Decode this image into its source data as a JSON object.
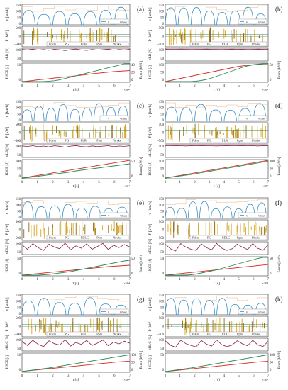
{
  "figure": {
    "panel_labels": [
      "(a)",
      "(b)",
      "(c)",
      "(d)",
      "(e)",
      "(f)",
      "(g)",
      "(h)"
    ],
    "x_axis_label": "t [s]",
    "x_exponent": "×10⁴",
    "x_tick_labels": [
      "0",
      "1",
      "2",
      "3",
      "4",
      "5",
      "6",
      "7"
    ]
  },
  "chart_data": [
    {
      "panel": "(a)",
      "type": "line",
      "ratio_label": "σLB [%]",
      "ratio_ticks": [
        "100",
        "50"
      ],
      "ratio_values": [
        96,
        92,
        98,
        90,
        95,
        88,
        97,
        93,
        85,
        94,
        99,
        91,
        87,
        96,
        90,
        94,
        98,
        89,
        95,
        92,
        97
      ],
      "soh_ylabel": "HSCE [J]",
      "soh_ticks": [
        "0",
        "50"
      ],
      "soh_values": [
        0,
        3,
        6,
        10,
        13,
        16,
        20,
        23,
        26,
        29,
        33,
        36,
        40,
        44,
        47,
        50,
        53,
        56,
        58,
        60,
        62
      ],
      "energy_ylabel": "Ecum [kWh]",
      "energy_ticks": [
        "0",
        "20",
        "40"
      ],
      "energy_values": [
        0,
        0,
        0,
        0,
        0,
        1,
        2,
        4,
        7,
        10,
        13,
        16,
        19,
        22,
        25,
        28,
        31,
        34,
        37,
        40,
        43
      ],
      "power_legend": [
        "Pdem",
        "PG",
        "PLB",
        "Ppm",
        "Pbrake"
      ],
      "speed_legend": [
        "v",
        "vmax"
      ]
    },
    {
      "panel": "(b)",
      "type": "line",
      "ratio_label": "σLB [%]",
      "ratio_ticks": [
        "100",
        "50"
      ],
      "ratio_values": [
        98,
        97,
        96,
        98,
        97,
        95,
        96,
        97,
        98,
        97,
        96,
        95,
        97,
        98,
        96,
        97,
        95,
        96,
        98,
        97,
        96
      ],
      "soh_ylabel": "HSCE [J]",
      "soh_ticks": [
        "0",
        "50",
        "100"
      ],
      "soh_values": [
        0,
        6,
        12,
        18,
        24,
        30,
        36,
        42,
        48,
        54,
        60,
        66,
        72,
        78,
        84,
        88,
        92,
        95,
        97,
        99,
        100
      ],
      "energy_ylabel": "Ecum [kWh]",
      "energy_ticks": [
        "0",
        "50"
      ],
      "energy_values": [
        0,
        0,
        0,
        0,
        0,
        0,
        1,
        3,
        6,
        10,
        15,
        20,
        25,
        30,
        35,
        40,
        44,
        47,
        49,
        50,
        51
      ],
      "power_legend": [
        "Pdem",
        "PG",
        "PLB",
        "Ppm",
        "Pbrake"
      ],
      "speed_legend": [
        "v",
        "vmax"
      ]
    },
    {
      "panel": "(c)",
      "type": "line",
      "ratio_label": "σLB [%]",
      "ratio_ticks": [
        "100",
        "50"
      ],
      "ratio_values": [
        95,
        90,
        97,
        88,
        94,
        86,
        96,
        92,
        84,
        93,
        98,
        90,
        86,
        95,
        89,
        93,
        97,
        88,
        94,
        91,
        96
      ],
      "soh_ylabel": "HSCE [J]",
      "soh_ticks": [
        "0",
        "50",
        "100"
      ],
      "soh_values": [
        0,
        5,
        10,
        15,
        20,
        25,
        30,
        35,
        40,
        45,
        50,
        55,
        60,
        65,
        70,
        75,
        80,
        85,
        90,
        95,
        100
      ],
      "energy_ylabel": "Ecum [kWh]",
      "energy_ticks": [
        "0",
        "50"
      ],
      "energy_values": [
        0,
        1,
        3,
        5,
        7,
        9,
        11,
        13,
        15,
        17,
        20,
        22,
        24,
        26,
        28,
        30,
        32,
        34,
        36,
        38,
        40
      ],
      "power_legend": [
        "Pdem",
        "PG",
        "PLB",
        "Ppm",
        "Pbrake"
      ],
      "speed_legend": [
        "v",
        "vmax"
      ]
    },
    {
      "panel": "(d)",
      "type": "line",
      "ratio_label": "σLB [%]",
      "ratio_ticks": [
        "100",
        "50"
      ],
      "ratio_values": [
        97,
        96,
        98,
        97,
        95,
        97,
        96,
        98,
        97,
        96,
        95,
        97,
        98,
        96,
        97,
        98,
        96,
        97,
        95,
        97,
        96
      ],
      "soh_ylabel": "HSCE [J]",
      "soh_ticks": [
        "0",
        "50",
        "100"
      ],
      "soh_values": [
        0,
        5,
        10,
        15,
        20,
        25,
        30,
        35,
        40,
        45,
        50,
        55,
        60,
        65,
        70,
        75,
        80,
        85,
        90,
        95,
        100
      ],
      "energy_ylabel": "Ecum [kWh]",
      "energy_ticks": [
        "0",
        "50",
        "100"
      ],
      "energy_values": [
        0,
        4,
        8,
        12,
        16,
        20,
        25,
        30,
        35,
        40,
        45,
        50,
        55,
        60,
        65,
        70,
        75,
        80,
        85,
        90,
        95
      ],
      "power_legend": [
        "Pdem",
        "PG",
        "PLB",
        "Ppm",
        "Pbrake"
      ],
      "speed_legend": [
        "v",
        "vmax"
      ]
    },
    {
      "panel": "(e)",
      "type": "line",
      "ratio_label": "σDLC [%]",
      "ratio_ticks": [
        "100",
        "50"
      ],
      "ratio_values": [
        80,
        40,
        90,
        55,
        30,
        85,
        60,
        45,
        95,
        35,
        70,
        50,
        88,
        40,
        65,
        92,
        38,
        75,
        55,
        82,
        60
      ],
      "soh_ylabel": "HSCE [J]",
      "soh_ticks": [
        "0",
        "50"
      ],
      "soh_values": [
        0,
        3,
        6,
        9,
        12,
        15,
        18,
        21,
        24,
        27,
        30,
        33,
        36,
        39,
        42,
        45,
        48,
        50,
        52,
        54,
        56
      ],
      "energy_ylabel": "Ecum [kWh]",
      "energy_ticks": [
        "0",
        "50"
      ],
      "energy_values": [
        0,
        0,
        0,
        0,
        1,
        2,
        4,
        6,
        8,
        10,
        13,
        16,
        19,
        22,
        25,
        28,
        31,
        34,
        37,
        40,
        42
      ],
      "power_legend": [
        "Pdem",
        "PG",
        "PDLC",
        "Ppm",
        "Pbrake"
      ],
      "speed_legend": [
        "v",
        "vmax"
      ]
    },
    {
      "panel": "(f)",
      "type": "line",
      "ratio_label": "σDLC [%]",
      "ratio_ticks": [
        "100",
        "50"
      ],
      "ratio_values": [
        85,
        45,
        25,
        90,
        60,
        40,
        30,
        88,
        55,
        35,
        92,
        50,
        30,
        45,
        86,
        58,
        38,
        90,
        48,
        32,
        80
      ],
      "soh_ylabel": "HSCE [J]",
      "soh_ticks": [
        "0",
        "50"
      ],
      "soh_values": [
        0,
        3,
        6,
        9,
        12,
        15,
        18,
        21,
        24,
        27,
        30,
        33,
        36,
        39,
        42,
        45,
        48,
        51,
        54,
        57,
        60
      ],
      "energy_ylabel": "Ecum [kWh]",
      "energy_ticks": [
        "0",
        "50"
      ],
      "energy_values": [
        0,
        0,
        0,
        0,
        0,
        1,
        3,
        6,
        9,
        12,
        15,
        19,
        23,
        27,
        31,
        35,
        39,
        43,
        47,
        50,
        53
      ],
      "power_legend": [
        "Pdem",
        "PG",
        "PDLC",
        "Ppm",
        "Pbrake"
      ],
      "speed_legend": [
        "v",
        "vmax"
      ]
    },
    {
      "panel": "(g)",
      "type": "line",
      "ratio_label": "σDLC [%]",
      "ratio_ticks": [
        "100",
        "50"
      ],
      "ratio_values": [
        78,
        42,
        88,
        52,
        32,
        84,
        58,
        46,
        93,
        36,
        68,
        52,
        86,
        42,
        63,
        90,
        40,
        72,
        56,
        80,
        62
      ],
      "soh_ylabel": "HSCE [J]",
      "soh_ticks": [
        "0",
        "50"
      ],
      "soh_values": [
        0,
        4,
        7,
        10,
        13,
        16,
        19,
        22,
        25,
        28,
        31,
        34,
        37,
        40,
        43,
        46,
        49,
        52,
        55,
        57,
        59
      ],
      "energy_ylabel": "Ecum [kWh]",
      "energy_ticks": [
        "0",
        "50",
        "100"
      ],
      "energy_values": [
        0,
        4,
        8,
        12,
        16,
        20,
        25,
        30,
        35,
        40,
        45,
        50,
        55,
        60,
        65,
        70,
        75,
        80,
        85,
        90,
        95
      ],
      "power_legend": [
        "Pdem",
        "PG",
        "PDLC",
        "Ppm",
        "Pbrake"
      ],
      "speed_legend": [
        "v",
        "vmax"
      ]
    },
    {
      "panel": "(h)",
      "type": "line",
      "ratio_label": "σDLC [%]",
      "ratio_ticks": [
        "100",
        "50"
      ],
      "ratio_values": [
        84,
        44,
        26,
        88,
        58,
        42,
        30,
        86,
        54,
        36,
        90,
        48,
        32,
        46,
        84,
        56,
        40,
        88,
        46,
        34,
        78
      ],
      "soh_ylabel": "HSCE [J]",
      "soh_ticks": [
        "0",
        "50"
      ],
      "soh_values": [
        0,
        3,
        6,
        9,
        12,
        15,
        18,
        21,
        24,
        27,
        30,
        33,
        36,
        39,
        42,
        45,
        48,
        51,
        54,
        56,
        58
      ],
      "energy_ylabel": "Ecum [kWh]",
      "energy_ticks": [
        "0",
        "50",
        "100"
      ],
      "energy_values": [
        0,
        4,
        8,
        12,
        16,
        20,
        25,
        30,
        35,
        40,
        45,
        50,
        55,
        60,
        65,
        70,
        75,
        80,
        85,
        90,
        95
      ],
      "power_legend": [
        "Pdem",
        "PG",
        "PDLC",
        "Ppm",
        "Pbrake"
      ],
      "speed_legend": [
        "v",
        "vmax"
      ]
    }
  ],
  "subplot_labels": {
    "speed": "v [km/h]",
    "power": "P [kW]"
  },
  "speed_ticks": [
    "150",
    "100",
    "50",
    "0"
  ],
  "power_ticks": [
    "500",
    "0",
    "-500"
  ],
  "colors": {
    "speed": "#3b8fbf",
    "power_dem": "#d9a520",
    "power_other": "#8c6d1f",
    "ratio": "#8c1c3c",
    "soh": "#d62f2f",
    "energy": "#2e8b57",
    "grid": "#dddddd",
    "frame": "#333333"
  }
}
